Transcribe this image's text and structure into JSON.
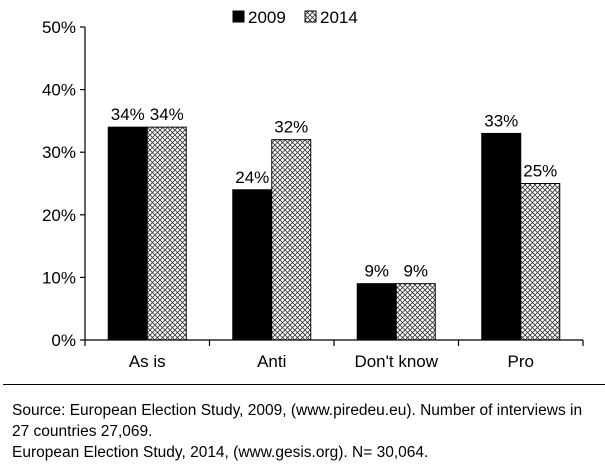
{
  "chart_data": {
    "type": "bar",
    "title": "",
    "xlabel": "",
    "ylabel": "",
    "categories": [
      "As is",
      "Anti",
      "Don't know",
      "Pro"
    ],
    "series": [
      {
        "name": "2009",
        "values": [
          34,
          24,
          9,
          33
        ],
        "labels": [
          "34%",
          "24%",
          "9%",
          "33%"
        ],
        "color": "#000000",
        "pattern": "solid"
      },
      {
        "name": "2014",
        "values": [
          34,
          32,
          9,
          25
        ],
        "labels": [
          "34%",
          "32%",
          "9%",
          "25%"
        ],
        "color": "#ffffff",
        "pattern": "crosshatch"
      }
    ],
    "ylim": [
      0,
      50
    ],
    "yticks": [
      0,
      10,
      20,
      30,
      40,
      50
    ],
    "ytick_labels": [
      "0%",
      "10%",
      "20%",
      "30%",
      "40%",
      "50%"
    ],
    "grid": false,
    "legend_position": "top"
  },
  "source": {
    "line1": "Source: European Election Study, 2009, (www.piredeu.eu). Number of interviews in 27 countries 27,069.",
    "line2": "European Election Study, 2014, (www.gesis.org). N= 30,064."
  }
}
